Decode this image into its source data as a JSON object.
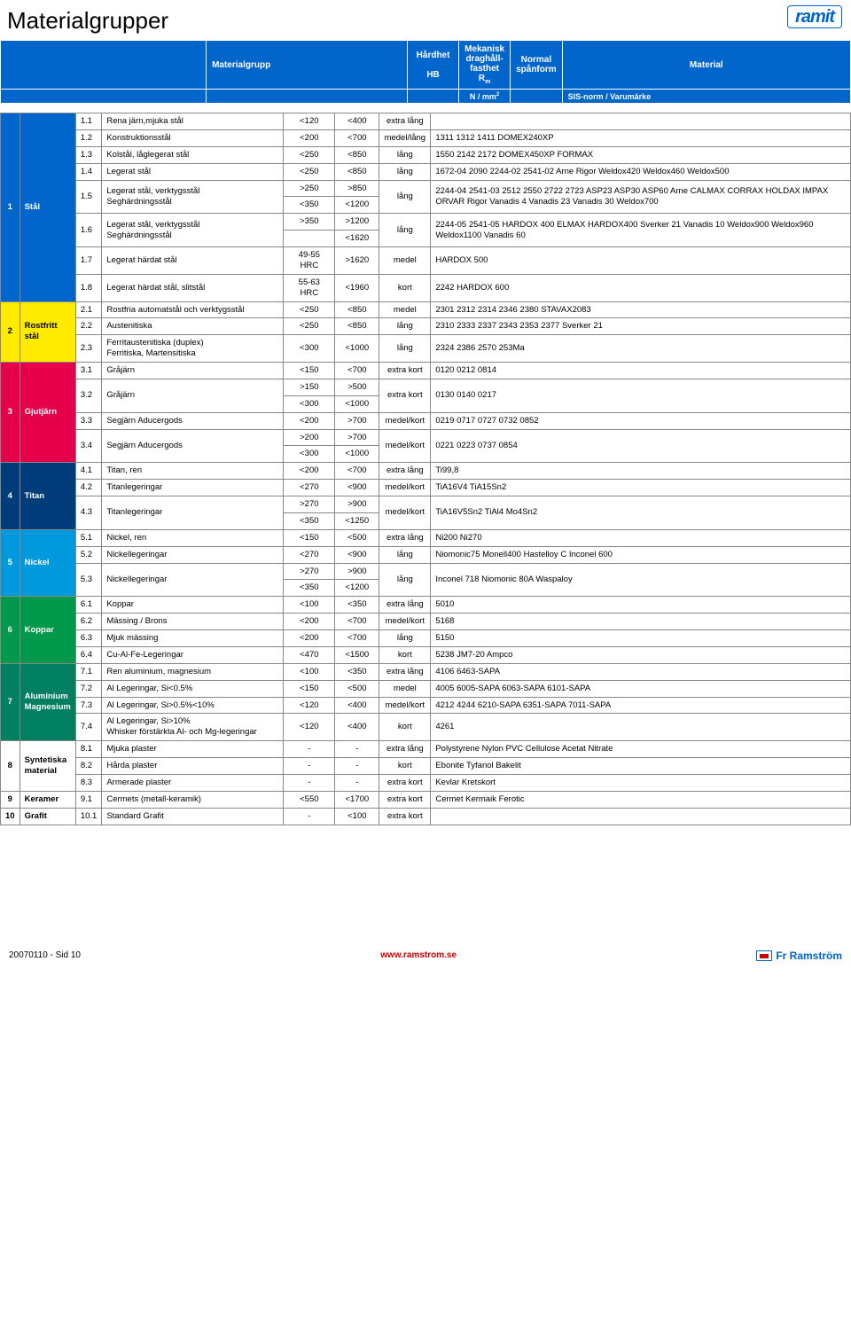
{
  "title": "Materialgrupper",
  "logo_text": "ramit",
  "header": {
    "cols": [
      "Materialgrupp",
      "Hårdhet\nHB",
      "Mekanisk\ndraghåll-\nfasthet\nRₘ",
      "Normal\nspånform",
      "Material"
    ],
    "sub": [
      "",
      "",
      "N / mm²",
      "",
      "SIS-norm / Varumärke"
    ]
  },
  "col_widths": {
    "group_num": "18px",
    "group_name": "58px",
    "idx": "22px",
    "mat": "205px",
    "hb": "58px",
    "rm": "50px",
    "chip": "58px"
  },
  "groups": [
    {
      "num": "1",
      "name": "Stål",
      "bg": "#0066cc",
      "fg": "#fff",
      "rows": [
        {
          "idx": "1.1",
          "mat": "Rena järn,mjuka stål",
          "hb": "<120",
          "rm": "<400",
          "chip": "extra lång",
          "sis": ""
        },
        {
          "idx": "1.2",
          "mat": "Konstruktionsstål",
          "hb": "<200",
          "rm": "<700",
          "chip": "medel/lång",
          "sis": "1311  1312  1411  DOMEX240XP"
        },
        {
          "idx": "1.3",
          "mat": "Kolstål, låglegerat stål",
          "hb": "<250",
          "rm": "<850",
          "chip": "lång",
          "sis": "1550  2142  2172  DOMEX450XP  FORMAX"
        },
        {
          "idx": "1.4",
          "mat": "Legerat stål",
          "hb": "<250",
          "rm": "<850",
          "chip": "lång",
          "sis": "1672-04  2090  2244-02  2541-02  Arne  Rigor  Weldox420 Weldox460  Weldox500"
        },
        {
          "idx": "1.5",
          "mat": "Legerat stål, verktygsstål\nSeghärdningsstål",
          "spans": [
            {
              "hb": ">250",
              "rm": ">850"
            },
            {
              "hb": "<350",
              "rm": "<1200"
            }
          ],
          "chip": "lång",
          "sis": "2244-04  2541-03  2512  2550  2722  2723  ASP23  ASP30 ASP60  Arne  CALMAX  CORRAX  HOLDAX  IMPAX  ORVAR Rigor  Vanadis 4  Vanadis 23  Vanadis 30  Weldox700"
        },
        {
          "idx": "1.6",
          "mat": "Legerat stål, verktygsstål\nSeghärdningsstål",
          "spans": [
            {
              "hb": ">350",
              "rm": ">1200"
            },
            {
              "hb": "",
              "rm": "<1620"
            }
          ],
          "chip": "lång",
          "sis": "2244-05  2541-05  HARDOX 400  ELMAX  HARDOX400 Sverker 21  Vanadis 10  Weldox900  Weldox960 Weldox1100 Vanadis 60"
        },
        {
          "idx": "1.7",
          "mat": "Legerat härdat stål",
          "hb": "49-55 HRC",
          "rm": ">1620",
          "chip": "medel",
          "sis": "HARDOX 500"
        },
        {
          "idx": "1.8",
          "mat": "Legerat härdat stål, slitstål",
          "hb": "55-63 HRC",
          "rm": "<1960",
          "chip": "kort",
          "sis": "2242  HARDOX 600"
        }
      ]
    },
    {
      "num": "2",
      "name": "Rostfritt stål",
      "bg": "#ffeb00",
      "fg": "#000",
      "rows": [
        {
          "idx": "2.1",
          "mat": "Rostfria automatstål och verktygsstål",
          "hb": "<250",
          "rm": "<850",
          "chip": "medel",
          "sis": "2301  2312  2314  2346  2380  STAVAX2083"
        },
        {
          "idx": "2.2",
          "mat": "Austenitiska",
          "hb": "<250",
          "rm": "<850",
          "chip": "lång",
          "sis": "2310  2333  2337  2343  2353  2377  Sverker 21"
        },
        {
          "idx": "2.3",
          "mat": "Ferritaustenitiska (duplex)\nFerritiska, Martensitiska",
          "hb": "<300",
          "rm": "<1000",
          "chip": "lång",
          "sis": "2324  2386  2570  253Ma"
        }
      ]
    },
    {
      "num": "3",
      "name": "Gjutjärn",
      "bg": "#e6004c",
      "fg": "#fff",
      "rows": [
        {
          "idx": "3.1",
          "mat": "Gråjärn",
          "hb": "<150",
          "rm": "<700",
          "chip": "extra kort",
          "sis": "0120  0212  0814"
        },
        {
          "idx": "3.2",
          "mat": "Gråjärn",
          "spans": [
            {
              "hb": ">150",
              "rm": ">500"
            },
            {
              "hb": "<300",
              "rm": "<1000"
            }
          ],
          "chip": "extra kort",
          "sis": "0130  0140  0217"
        },
        {
          "idx": "3.3",
          "mat": "Segjärn  Aducergods",
          "hb": "<200",
          "rm": ">700",
          "chip": "medel/kort",
          "sis": "0219  0717  0727  0732  0852"
        },
        {
          "idx": "3.4",
          "mat": "Segjärn  Aducergods",
          "spans": [
            {
              "hb": ">200",
              "rm": ">700"
            },
            {
              "hb": "<300",
              "rm": "<1000"
            }
          ],
          "chip": "medel/kort",
          "sis": "0221  0223  0737  0854"
        }
      ]
    },
    {
      "num": "4",
      "name": "Titan",
      "bg": "#003c7a",
      "fg": "#fff",
      "rows": [
        {
          "idx": "4.1",
          "mat": "Titan, ren",
          "hb": "<200",
          "rm": "<700",
          "chip": "extra lång",
          "sis": "Ti99,8"
        },
        {
          "idx": "4.2",
          "mat": "Titanlegeringar",
          "hb": "<270",
          "rm": "<900",
          "chip": "medel/kort",
          "sis": "TiA16V4  TiA15Sn2"
        },
        {
          "idx": "4.3",
          "mat": "Titanlegeringar",
          "spans": [
            {
              "hb": ">270",
              "rm": ">900"
            },
            {
              "hb": "<350",
              "rm": "<1250"
            }
          ],
          "chip": "medel/kort",
          "sis": "TiA16V5Sn2  TiAl4  Mo4Sn2"
        }
      ]
    },
    {
      "num": "5",
      "name": "Nickel",
      "bg": "#0099dd",
      "fg": "#fff",
      "rows": [
        {
          "idx": "5.1",
          "mat": "Nickel, ren",
          "hb": "<150",
          "rm": "<500",
          "chip": "extra lång",
          "sis": "Ni200  Ni270"
        },
        {
          "idx": "5.2",
          "mat": "Nickellegeringar",
          "hb": "<270",
          "rm": "<900",
          "chip": "lång",
          "sis": "Niomonic75  Monell400  Hastelloy C  Inconel 600"
        },
        {
          "idx": "5.3",
          "mat": "Nickellegeringar",
          "spans": [
            {
              "hb": ">270",
              "rm": ">900"
            },
            {
              "hb": "<350",
              "rm": "<1200"
            }
          ],
          "chip": "lång",
          "sis": "Inconel 718  Niomonic 80A  Waspaloy"
        }
      ]
    },
    {
      "num": "6",
      "name": "Koppar",
      "bg": "#00994c",
      "fg": "#fff",
      "rows": [
        {
          "idx": "6.1",
          "mat": "Koppar",
          "hb": "<100",
          "rm": "<350",
          "chip": "extra lång",
          "sis": "5010"
        },
        {
          "idx": "6.2",
          "mat": "Mässing / Brons",
          "hb": "<200",
          "rm": "<700",
          "chip": "medel/kort",
          "sis": "5168"
        },
        {
          "idx": "6.3",
          "mat": "Mjuk mässing",
          "hb": "<200",
          "rm": "<700",
          "chip": "lång",
          "sis": "5150"
        },
        {
          "idx": "6.4",
          "mat": "Cu-Al-Fe-Legeringar",
          "hb": "<470",
          "rm": "<1500",
          "chip": "kort",
          "sis": "5238  JM7-20  Ampco"
        }
      ]
    },
    {
      "num": "7",
      "name": "Aluminium Magnesium",
      "bg": "#008060",
      "fg": "#fff",
      "rows": [
        {
          "idx": "7.1",
          "mat": "Ren aluminium, magnesium",
          "hb": "<100",
          "rm": "<350",
          "chip": "extra lång",
          "sis": "4106  6463-SAPA"
        },
        {
          "idx": "7.2",
          "mat": "Al Legeringar, Si<0.5%",
          "hb": "<150",
          "rm": "<500",
          "chip": "medel",
          "sis": "4005  6005-SAPA  6063-SAPA  6101-SAPA"
        },
        {
          "idx": "7.3",
          "mat": "Al Legeringar, Si>0.5%<10%",
          "hb": "<120",
          "rm": "<400",
          "chip": "medel/kort",
          "sis": "4212  4244  6210-SAPA  6351-SAPA  7011-SAPA"
        },
        {
          "idx": "7.4",
          "mat": "Al Legeringar, Si>10%\nWhisker förstärkta Al- och Mg-legeringar",
          "hb": "<120",
          "rm": "<400",
          "chip": "kort",
          "sis": "4261"
        }
      ]
    },
    {
      "num": "8",
      "name": "Syntetiska material",
      "bg": "#ffffff",
      "fg": "#000",
      "rows": [
        {
          "idx": "8.1",
          "mat": "Mjuka plaster",
          "hb": "-",
          "rm": "-",
          "chip": "extra lång",
          "sis": "Polystyrene  Nylon  PVC  Cellulose  Acetat  Nitrate"
        },
        {
          "idx": "8.2",
          "mat": "Hårda plaster",
          "hb": "-",
          "rm": "-",
          "chip": "kort",
          "sis": "Ebonite  Tyfanol  Bakelit"
        },
        {
          "idx": "8.3",
          "mat": "Armerade plaster",
          "hb": "-",
          "rm": "-",
          "chip": "extra kort",
          "sis": "Kevlar  Kretskort"
        }
      ]
    },
    {
      "num": "9",
      "name": "Keramer",
      "bg": "#ffffff",
      "fg": "#000",
      "rows": [
        {
          "idx": "9.1",
          "mat": "Cermets (metall-keramik)",
          "hb": "<550",
          "rm": "<1700",
          "chip": "extra kort",
          "sis": "Cermet  Kermaik  Ferotic"
        }
      ]
    },
    {
      "num": "10",
      "name": "Grafit",
      "bg": "#ffffff",
      "fg": "#000",
      "rows": [
        {
          "idx": "10.1",
          "mat": "Standard Grafit",
          "hb": "-",
          "rm": "<100",
          "chip": "extra kort",
          "sis": ""
        }
      ]
    }
  ],
  "footer": {
    "left": "20070110 - Sid 10",
    "mid": "www.ramstrom.se",
    "right": "Fr Ramström"
  }
}
